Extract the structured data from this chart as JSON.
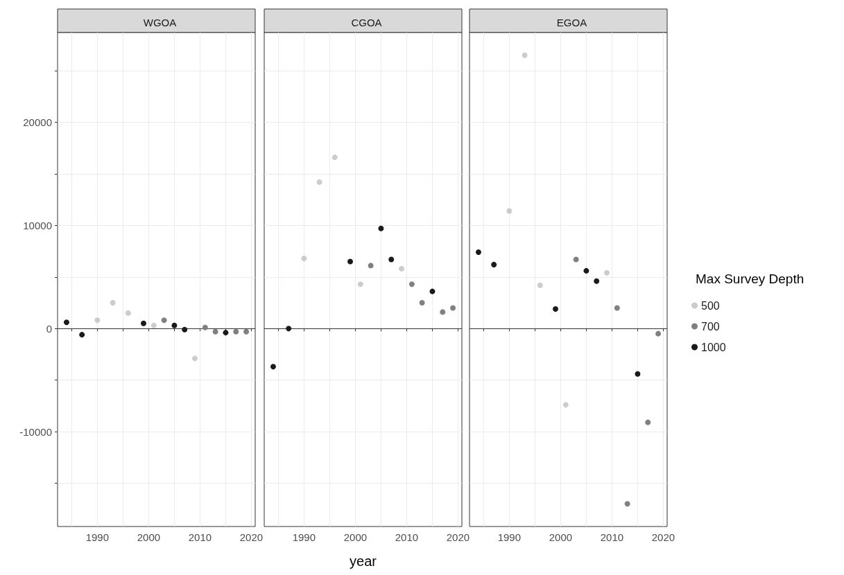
{
  "chart_data": [
    {
      "type": "scatter",
      "title": "WGOA",
      "xlim": [
        1982.25,
        2020.75
      ],
      "ylim": [
        -19200,
        28700
      ],
      "xticks": [
        {
          "value": 1985,
          "label": null
        },
        1990,
        {
          "value": 1995,
          "label": null
        },
        2000,
        {
          "value": 2005,
          "label": null
        },
        2010,
        {
          "value": 2015,
          "label": null
        },
        2020
      ],
      "yticks": [
        {
          "value": -15000,
          "label": null
        },
        -10000,
        {
          "value": -5000,
          "label": null
        },
        0,
        {
          "value": 5000,
          "label": null
        },
        10000,
        {
          "value": 15000,
          "label": null
        },
        20000,
        {
          "value": 25000,
          "label": null
        }
      ],
      "grid": true,
      "legend": false,
      "marker": "circle",
      "ref_lines": [
        {
          "axis": "y",
          "value": 0,
          "color": "#333333"
        }
      ],
      "series": [
        {
          "color": "#cccccc",
          "x": [
            1990,
            1993,
            1996,
            2001,
            2009
          ],
          "values": [
            800,
            2500,
            1500,
            300,
            -2900
          ]
        },
        {
          "color": "#808080",
          "x": [
            2003,
            2011,
            2013,
            2017,
            2019
          ],
          "values": [
            800,
            100,
            -300,
            -300,
            -300
          ]
        },
        {
          "color": "#1a1a1a",
          "x": [
            1984,
            1987,
            1999,
            2005,
            2007,
            2015
          ],
          "values": [
            600,
            -600,
            500,
            300,
            -100,
            -400
          ]
        }
      ]
    },
    {
      "type": "scatter",
      "title": "CGOA",
      "xlabel": "year",
      "xlim": [
        1982.25,
        2020.75
      ],
      "ylim": [
        -19200,
        28700
      ],
      "xticks": [
        {
          "value": 1985,
          "label": null
        },
        1990,
        {
          "value": 1995,
          "label": null
        },
        2000,
        {
          "value": 2005,
          "label": null
        },
        2010,
        {
          "value": 2015,
          "label": null
        },
        2020
      ],
      "yticks": [
        {
          "value": -15000,
          "label": null
        },
        {
          "value": -10000,
          "label": null
        },
        {
          "value": -5000,
          "label": null
        },
        {
          "value": 0,
          "label": null
        },
        {
          "value": 5000,
          "label": null
        },
        {
          "value": 10000,
          "label": null
        },
        {
          "value": 15000,
          "label": null
        },
        {
          "value": 20000,
          "label": null
        },
        {
          "value": 25000,
          "label": null
        }
      ],
      "tick_labels": "x",
      "grid": true,
      "legend": false,
      "marker": "circle",
      "ref_lines": [
        {
          "axis": "y",
          "value": 0,
          "color": "#333333"
        }
      ],
      "series": [
        {
          "color": "#cccccc",
          "x": [
            1990,
            1993,
            1996,
            2001,
            2009
          ],
          "values": [
            6800,
            14200,
            16600,
            4300,
            5800
          ]
        },
        {
          "color": "#808080",
          "x": [
            2003,
            2011,
            2013,
            2017,
            2019
          ],
          "values": [
            6100,
            4300,
            2500,
            1600,
            2000
          ]
        },
        {
          "color": "#1a1a1a",
          "x": [
            1984,
            1987,
            1999,
            2005,
            2007,
            2015
          ],
          "values": [
            -3700,
            0,
            6500,
            9700,
            6700,
            3600
          ]
        }
      ]
    },
    {
      "type": "scatter",
      "title": "EGOA",
      "legend_title": "Max Survey Depth",
      "xlim": [
        1982.25,
        2020.75
      ],
      "ylim": [
        -19200,
        28700
      ],
      "xticks": [
        {
          "value": 1985,
          "label": null
        },
        1990,
        {
          "value": 1995,
          "label": null
        },
        2000,
        {
          "value": 2005,
          "label": null
        },
        2010,
        {
          "value": 2015,
          "label": null
        },
        2020
      ],
      "yticks": [
        {
          "value": -15000,
          "label": null
        },
        {
          "value": -10000,
          "label": null
        },
        {
          "value": -5000,
          "label": null
        },
        {
          "value": 0,
          "label": null
        },
        {
          "value": 5000,
          "label": null
        },
        {
          "value": 10000,
          "label": null
        },
        {
          "value": 15000,
          "label": null
        },
        {
          "value": 20000,
          "label": null
        },
        {
          "value": 25000,
          "label": null
        }
      ],
      "tick_labels": "x",
      "grid": true,
      "legend": "right",
      "marker": "circle",
      "ref_lines": [
        {
          "axis": "y",
          "value": 0,
          "color": "#333333"
        }
      ],
      "series": [
        {
          "name": "500",
          "color": "#cccccc",
          "x": [
            1990,
            1993,
            1996,
            2001,
            2009
          ],
          "values": [
            11400,
            26500,
            4200,
            -7400,
            5400
          ]
        },
        {
          "name": "700",
          "color": "#808080",
          "x": [
            2003,
            2011,
            2013,
            2017,
            2019
          ],
          "values": [
            6700,
            2000,
            -17000,
            -9100,
            -500
          ]
        },
        {
          "name": "1000",
          "color": "#1a1a1a",
          "x": [
            1984,
            1987,
            1999,
            2005,
            2007,
            2015
          ],
          "values": [
            7400,
            6200,
            1900,
            5600,
            4600,
            -4400
          ]
        }
      ]
    }
  ]
}
